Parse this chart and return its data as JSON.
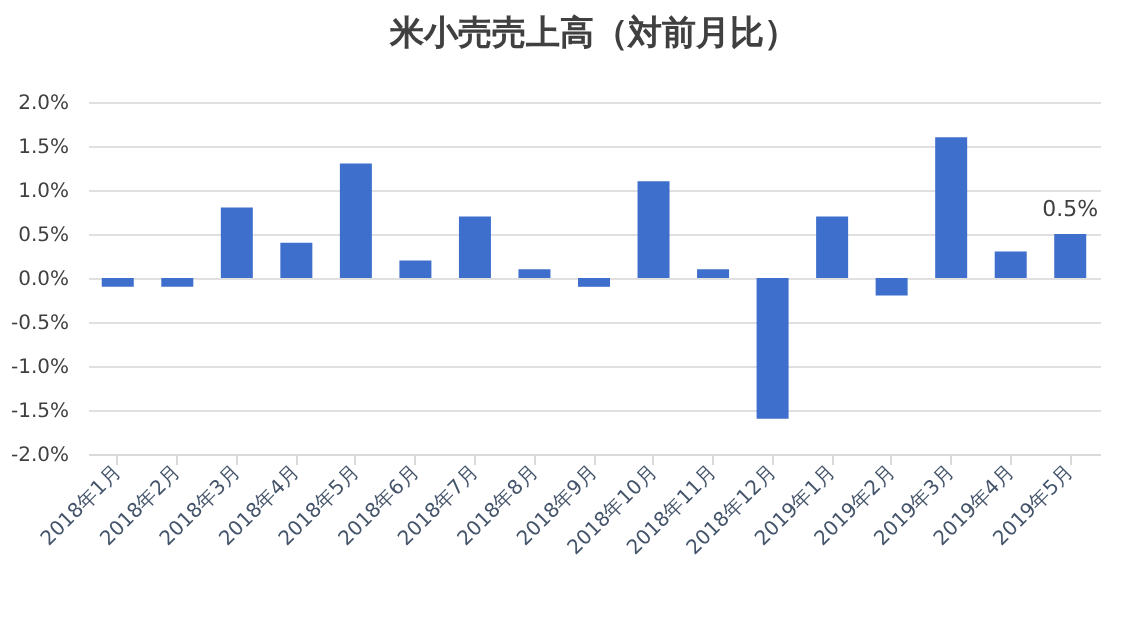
{
  "chart_data": {
    "type": "bar",
    "title": "米小売売上高（対前月比）",
    "categories": [
      "2018年1月",
      "2018年2月",
      "2018年3月",
      "2018年4月",
      "2018年5月",
      "2018年6月",
      "2018年7月",
      "2018年8月",
      "2018年9月",
      "2018年10月",
      "2018年11月",
      "2018年12月",
      "2019年1月",
      "2019年2月",
      "2019年3月",
      "2019年4月",
      "2019年5月"
    ],
    "values": [
      -0.1,
      -0.1,
      0.8,
      0.4,
      1.3,
      0.2,
      0.7,
      0.1,
      -0.1,
      1.1,
      0.1,
      -1.6,
      0.7,
      -0.2,
      1.6,
      0.3,
      0.5
    ],
    "value_labels": [
      null,
      null,
      null,
      null,
      null,
      null,
      null,
      null,
      null,
      null,
      null,
      null,
      null,
      null,
      null,
      null,
      "0.5%"
    ],
    "color": "#3f6fcc",
    "ylim": [
      -2,
      2
    ],
    "yticks": [
      {
        "value": -2,
        "label": "-2.0%"
      },
      {
        "value": -1.5,
        "label": "-1.5%"
      },
      {
        "value": -1,
        "label": "-1.0%"
      },
      {
        "value": -0.5,
        "label": "-0.5%"
      },
      {
        "value": 0,
        "label": "0.0%"
      },
      {
        "value": 0.5,
        "label": "0.5%"
      },
      {
        "value": 1,
        "label": "1.0%"
      },
      {
        "value": 1.5,
        "label": "1.5%"
      },
      {
        "value": 2,
        "label": "2.0%"
      }
    ],
    "grid": "y"
  }
}
